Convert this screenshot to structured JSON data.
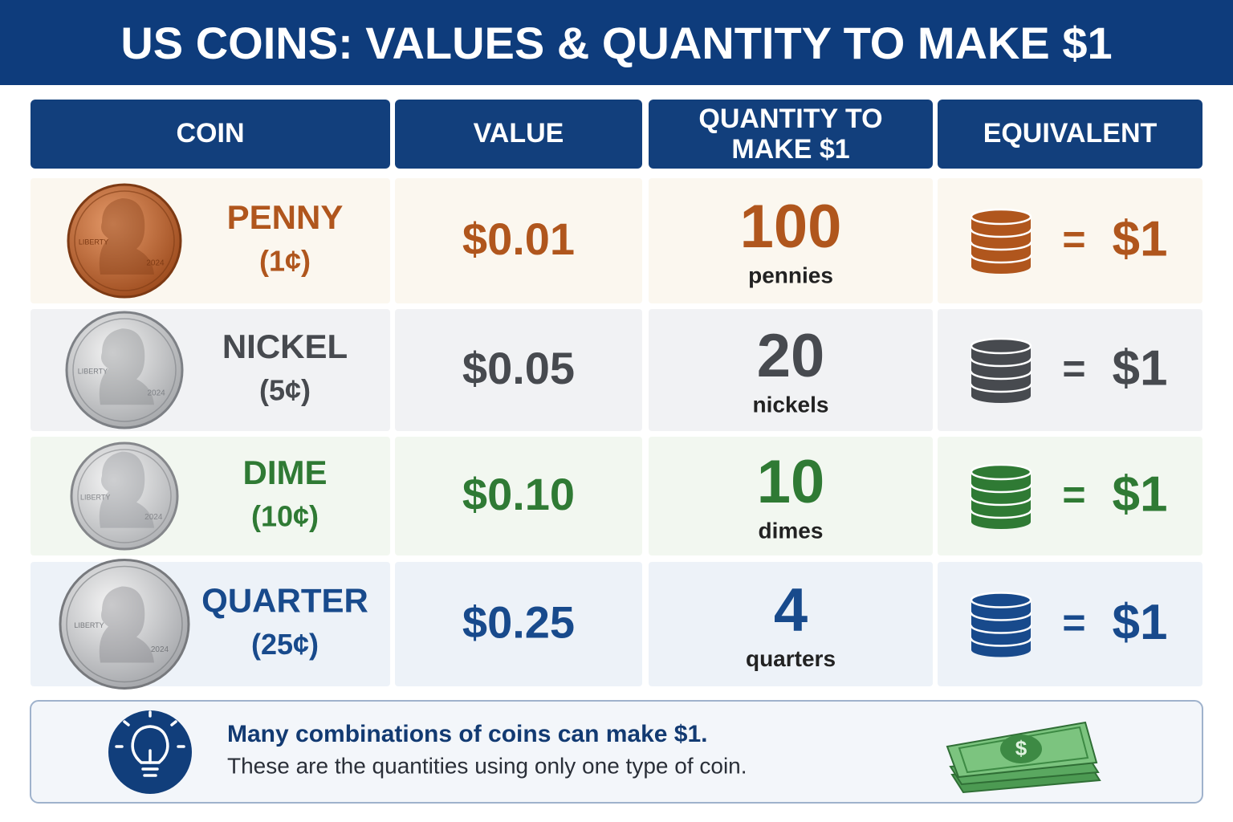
{
  "header": {
    "title": "US COINS: VALUES & QUANTITY TO MAKE $1"
  },
  "table": {
    "columns": [
      "COIN",
      "VALUE",
      [
        "QUANTITY TO",
        "MAKE $1"
      ],
      "EQUIVALENT"
    ],
    "rows": [
      {
        "coin": "PENNY",
        "cents": "(1¢)",
        "value": "$0.01",
        "quantity": 100,
        "unit": "pennies",
        "equals": "=",
        "total": "$1",
        "motto": "LIBERTY",
        "year": "2024",
        "color": "#b0561d",
        "background": "#fbf7ef"
      },
      {
        "coin": "NICKEL",
        "cents": "(5¢)",
        "value": "$0.05",
        "quantity": 20,
        "unit": "nickels",
        "equals": "=",
        "total": "$1",
        "motto": "LIBERTY",
        "year": "2024",
        "color": "#474a4f",
        "background": "#f1f2f4"
      },
      {
        "coin": "DIME",
        "cents": "(10¢)",
        "value": "$0.10",
        "quantity": 10,
        "unit": "dimes",
        "equals": "=",
        "total": "$1",
        "motto": "LIBERTY",
        "year": "2024",
        "color": "#2f7a34",
        "background": "#f2f7f0"
      },
      {
        "coin": "QUARTER",
        "cents": "(25¢)",
        "value": "$0.25",
        "quantity": 4,
        "unit": "quarters",
        "equals": "=",
        "total": "$1",
        "motto": "LIBERTY",
        "year": "2024",
        "color": "#184a8c",
        "background": "#edf2f8"
      }
    ]
  },
  "note": {
    "headline": "Many combinations of coins can make $1.",
    "text": "These are the quantities using only one type of coin.",
    "bill_symbol": "$"
  }
}
